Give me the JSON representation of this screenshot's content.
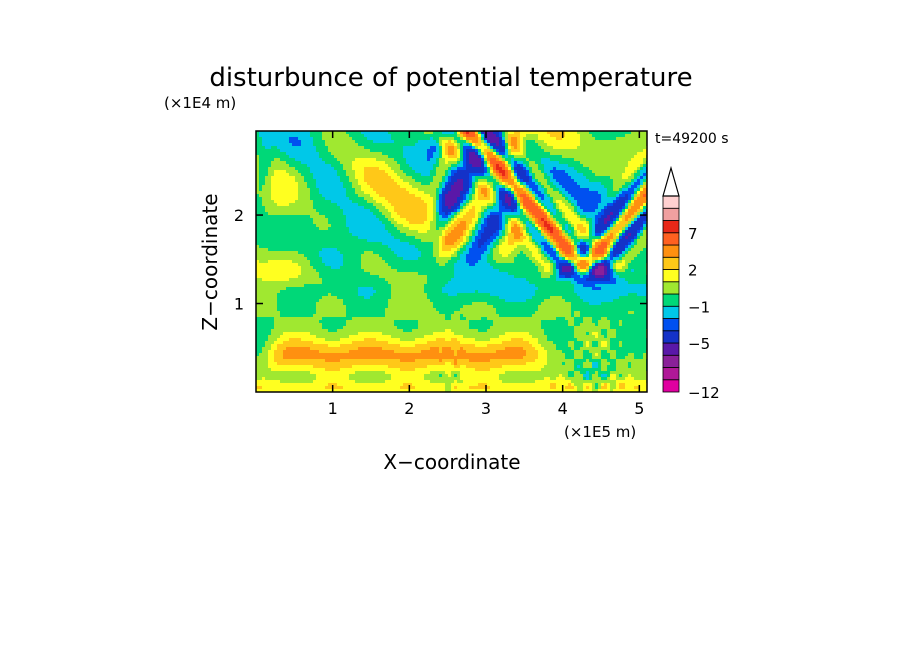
{
  "chart_data": {
    "type": "heatmap",
    "title": "disturbunce of potential temperature",
    "time_label": "t=49200 s",
    "xlabel": "X−coordinate",
    "ylabel": "Z−coordinate",
    "x_unit": "(×1E5 m)",
    "y_unit": "(×1E4 m)",
    "xlim": [
      0,
      5.1
    ],
    "ylim": [
      0,
      2.95
    ],
    "x_ticks": [
      "1",
      "2",
      "3",
      "4",
      "5"
    ],
    "x_tick_values": [
      1,
      2,
      3,
      4,
      5
    ],
    "y_ticks": [
      "1",
      "2"
    ],
    "y_tick_values": [
      1,
      2
    ],
    "grid": false,
    "colorbar": {
      "levels": [
        -12,
        -11,
        -9,
        -7,
        -5,
        -3,
        -2,
        -1,
        0,
        1,
        2,
        3,
        5,
        7,
        9,
        11
      ],
      "extend": "max",
      "colors": [
        "#e000a0",
        "#b01898",
        "#8a2099",
        "#5a18a8",
        "#1432c8",
        "#0050f0",
        "#00c8e8",
        "#00d878",
        "#a0e830",
        "#ffff20",
        "#ffc818",
        "#ff9010",
        "#ff6020",
        "#e82818",
        "#f0a0a0",
        "#ffd0d0"
      ],
      "tick_labels": [
        "7",
        "2",
        "−1",
        "−5",
        "−12"
      ],
      "tick_values": [
        7,
        2,
        -1,
        -5,
        -12
      ]
    }
  }
}
